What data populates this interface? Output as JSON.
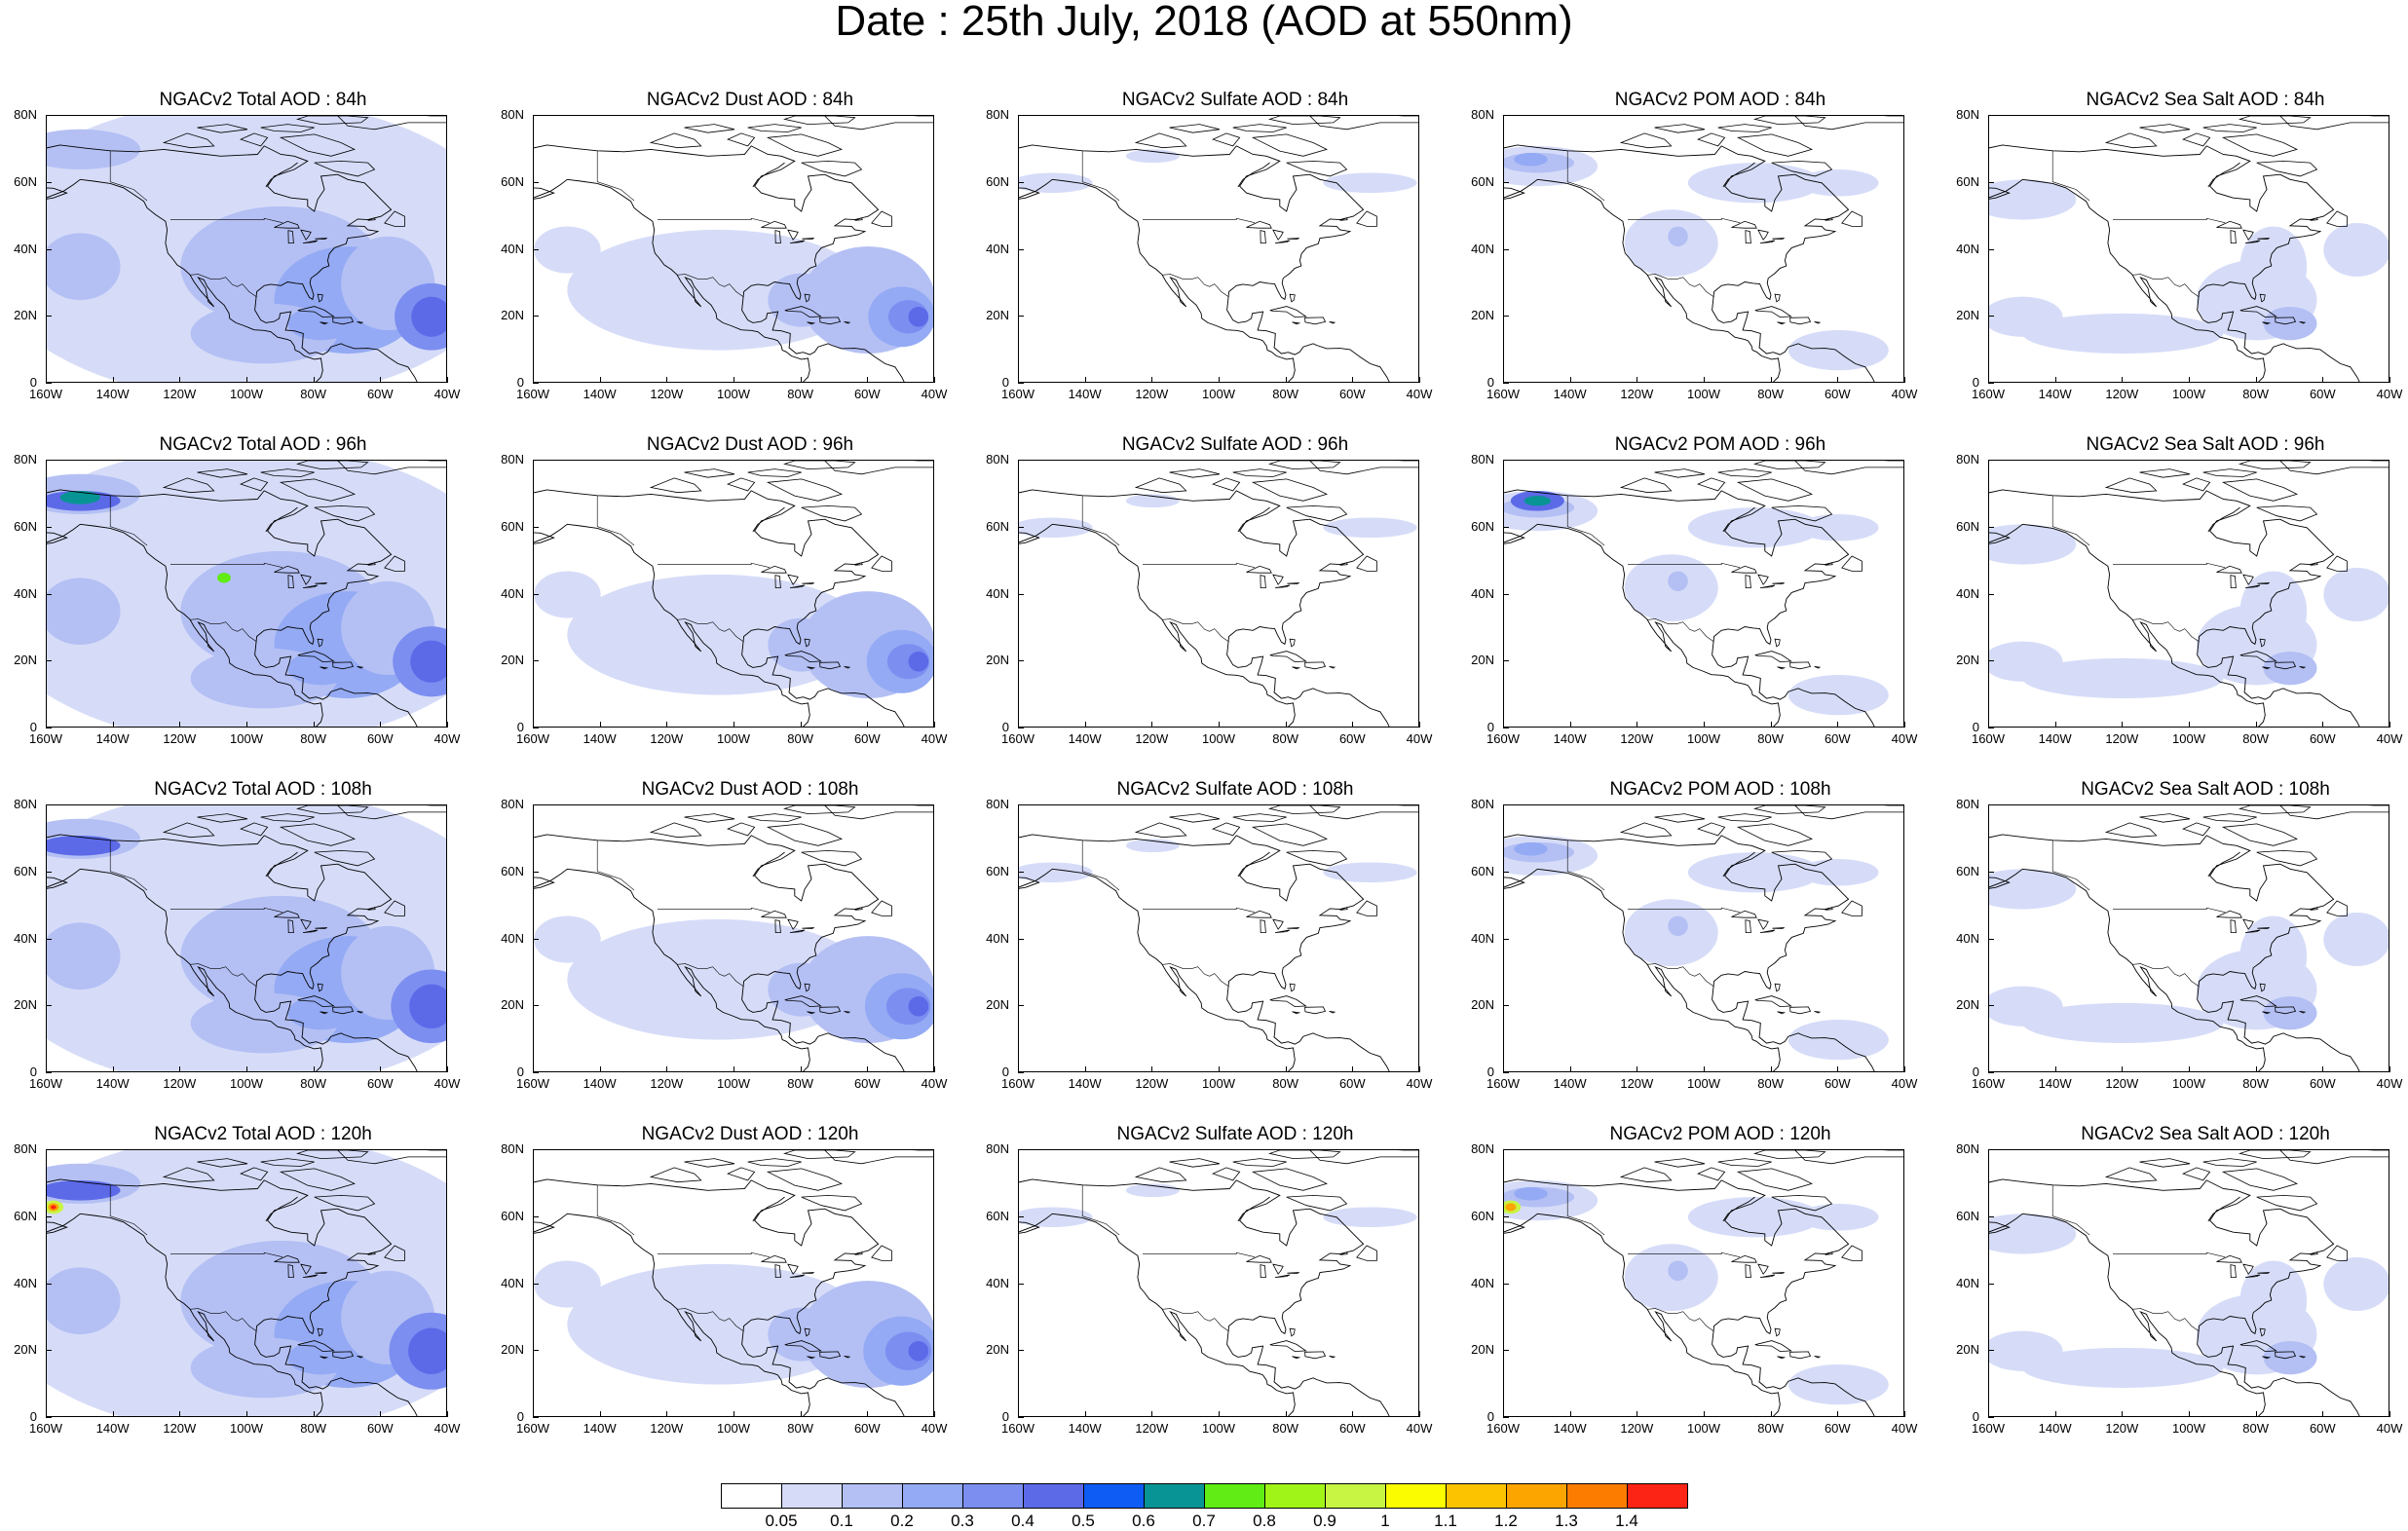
{
  "title": "Date : 25th July, 2018 (AOD at 550nm)",
  "axes": {
    "lat_labels": [
      "80N",
      "60N",
      "40N",
      "20N",
      "0"
    ],
    "lat_values": [
      80,
      60,
      40,
      20,
      0
    ],
    "lon_labels": [
      "160W",
      "140W",
      "120W",
      "100W",
      "80W",
      "60W",
      "40W"
    ],
    "lon_values": [
      -160,
      -140,
      -120,
      -100,
      -80,
      -60,
      -40
    ]
  },
  "panels": [
    {
      "title": "NGACv2 Total AOD : 84h",
      "kind": "total",
      "row": 0,
      "col": 0
    },
    {
      "title": "NGACv2 Dust AOD : 84h",
      "kind": "dust",
      "row": 0,
      "col": 1
    },
    {
      "title": "NGACv2 Sulfate AOD : 84h",
      "kind": "sulfate",
      "row": 0,
      "col": 2
    },
    {
      "title": "NGACv2 POM AOD : 84h",
      "kind": "pom",
      "row": 0,
      "col": 3
    },
    {
      "title": "NGACv2 Sea Salt AOD : 84h",
      "kind": "seasalt",
      "row": 0,
      "col": 4
    },
    {
      "title": "NGACv2 Total AOD : 96h",
      "kind": "total",
      "row": 1,
      "col": 0
    },
    {
      "title": "NGACv2 Dust AOD : 96h",
      "kind": "dust",
      "row": 1,
      "col": 1
    },
    {
      "title": "NGACv2 Sulfate AOD : 96h",
      "kind": "sulfate",
      "row": 1,
      "col": 2
    },
    {
      "title": "NGACv2 POM AOD : 96h",
      "kind": "pom",
      "row": 1,
      "col": 3
    },
    {
      "title": "NGACv2 Sea Salt AOD : 96h",
      "kind": "seasalt",
      "row": 1,
      "col": 4
    },
    {
      "title": "NGACv2 Total AOD : 108h",
      "kind": "total",
      "row": 2,
      "col": 0
    },
    {
      "title": "NGACv2 Dust AOD : 108h",
      "kind": "dust",
      "row": 2,
      "col": 1
    },
    {
      "title": "NGACv2 Sulfate AOD : 108h",
      "kind": "sulfate",
      "row": 2,
      "col": 2
    },
    {
      "title": "NGACv2 POM AOD : 108h",
      "kind": "pom",
      "row": 2,
      "col": 3
    },
    {
      "title": "NGACv2 Sea Salt AOD : 108h",
      "kind": "seasalt",
      "row": 2,
      "col": 4
    },
    {
      "title": "NGACv2 Total AOD : 120h",
      "kind": "total",
      "row": 3,
      "col": 0
    },
    {
      "title": "NGACv2 Dust AOD : 120h",
      "kind": "dust",
      "row": 3,
      "col": 1
    },
    {
      "title": "NGACv2 Sulfate AOD : 120h",
      "kind": "sulfate",
      "row": 3,
      "col": 2
    },
    {
      "title": "NGACv2 POM AOD : 120h",
      "kind": "pom",
      "row": 3,
      "col": 3
    },
    {
      "title": "NGACv2 Sea Salt  AOD : 120h",
      "kind": "seasalt",
      "row": 3,
      "col": 4
    }
  ],
  "colorbar": {
    "labels": [
      "0.05",
      "0.1",
      "0.2",
      "0.3",
      "0.4",
      "0.5",
      "0.6",
      "0.7",
      "0.8",
      "0.9",
      "1",
      "1.1",
      "1.2",
      "1.3",
      "1.4"
    ],
    "colors": [
      "#ffffff",
      "#d6dcf8",
      "#b4c0f4",
      "#94aaf4",
      "#7c8ef0",
      "#5c6ae8",
      "#0e5cf4",
      "#089494",
      "#60ec14",
      "#a0f418",
      "#c8f444",
      "#fcfc00",
      "#fcc400",
      "#fca400",
      "#fc7c00",
      "#fc2414"
    ]
  }
}
